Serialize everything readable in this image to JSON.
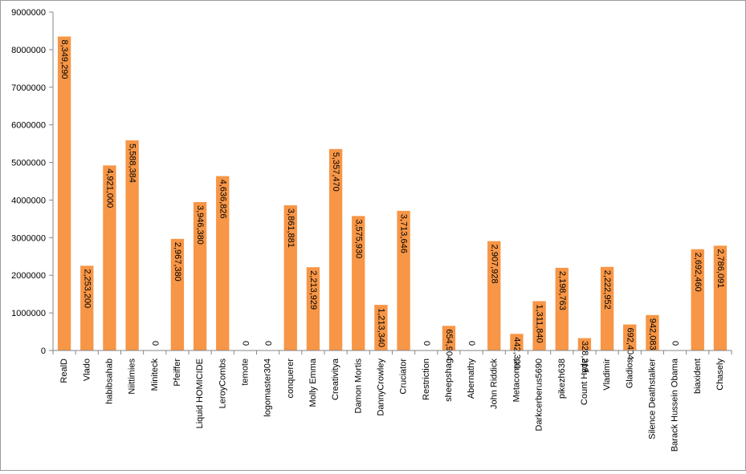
{
  "chart_data": {
    "type": "bar",
    "title": "",
    "xlabel": "",
    "ylabel": "",
    "ylim": [
      0,
      9000000
    ],
    "yticks": [
      "0",
      "1000000",
      "2000000",
      "3000000",
      "4000000",
      "5000000",
      "6000000",
      "7000000",
      "8000000",
      "9000000"
    ],
    "grid": false,
    "legend": "none",
    "bar_color": "#F79646",
    "categories": [
      "RealD",
      "Vlado",
      "habibsahab",
      "Niittimies",
      "Miniteck",
      "Pfeiffer",
      "Liquid HOMICIDE",
      "LeroyCombs",
      "temote",
      "logomaster304",
      "conquerer",
      "Molly Emma",
      "Creativitya",
      "Damon Mortis",
      "DannyCrowley",
      "Cruciator",
      "Restriction",
      "sheepshag",
      "Abernathy",
      "John Riddick",
      "Metacomet",
      "Darkcerberus5690",
      "pikezh638",
      "Count Hyde",
      "Vladimir",
      "Gladios",
      "Silence Deathstalker",
      "Barack Hussein Obama",
      "biaxident",
      "Chasely"
    ],
    "values": [
      8349290,
      2253200,
      4921000,
      5588384,
      0,
      2967380,
      3946380,
      4636826,
      0,
      0,
      3861881,
      2213929,
      5357470,
      3575930,
      1213340,
      3713646,
      0,
      654904,
      0,
      2907928,
      442300,
      1311840,
      2198763,
      328219,
      2222952,
      692404,
      942083,
      0,
      2692460,
      2786091
    ],
    "labels": [
      "8,349,290",
      "2,253,200",
      "4,921,000",
      "5,588,384",
      "0",
      "2,967,380",
      "3,946,380",
      "4,636,826",
      "0",
      "0",
      "3,861,881",
      "2,213,929",
      "5,357,470",
      "3,575,930",
      "1,213,340",
      "3,713,646",
      "0",
      "654,904",
      "0",
      "2,907,928",
      "442,300",
      "1,311,840",
      "2,198,763",
      "328,219",
      "2,222,952",
      "692,404",
      "942,083",
      "0",
      "2,692,460",
      "2,786,091"
    ]
  }
}
